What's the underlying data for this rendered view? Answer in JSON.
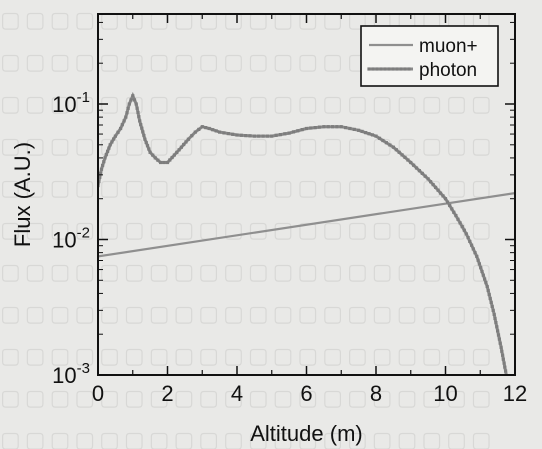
{
  "chart_data": {
    "type": "line",
    "xlabel": "Altitude (m)",
    "ylabel": "Flux (A.U.)",
    "xlim": [
      0,
      12
    ],
    "ylim": [
      0.001,
      0.2
    ],
    "yscale": "log",
    "x_ticks": [
      "0",
      "2",
      "4",
      "6",
      "8",
      "10",
      "12"
    ],
    "y_ticks": [
      {
        "value": 0.1,
        "base": "10",
        "exp": "-1"
      },
      {
        "value": 0.01,
        "base": "10",
        "exp": "-2"
      },
      {
        "value": 0.001,
        "base": "10",
        "exp": "-3"
      }
    ],
    "grid": false,
    "legend_position": "top-right",
    "series": [
      {
        "name": "muon+",
        "color": "#8f8f8f",
        "marker": "none",
        "x": [
          0,
          12
        ],
        "y": [
          0.0075,
          0.022
        ]
      },
      {
        "name": "photon",
        "color": "#8a8a8a",
        "marker": "square",
        "x": [
          0,
          0.1,
          0.2,
          0.35,
          0.5,
          0.65,
          0.8,
          0.9,
          1.0,
          1.1,
          1.2,
          1.35,
          1.5,
          1.65,
          1.8,
          2.0,
          2.2,
          2.4,
          2.6,
          2.8,
          3.0,
          3.2,
          3.5,
          4.0,
          4.5,
          5.0,
          5.5,
          6.0,
          6.5,
          7.0,
          7.5,
          8.0,
          8.5,
          9.0,
          9.5,
          10.0,
          10.3,
          10.6,
          10.9,
          11.2,
          11.4,
          11.6,
          11.75
        ],
        "y": [
          0.025,
          0.033,
          0.04,
          0.05,
          0.058,
          0.066,
          0.08,
          0.1,
          0.115,
          0.1,
          0.075,
          0.055,
          0.044,
          0.04,
          0.037,
          0.037,
          0.042,
          0.048,
          0.055,
          0.062,
          0.068,
          0.066,
          0.062,
          0.059,
          0.058,
          0.058,
          0.061,
          0.066,
          0.068,
          0.068,
          0.064,
          0.058,
          0.048,
          0.037,
          0.028,
          0.02,
          0.015,
          0.011,
          0.0075,
          0.0045,
          0.0028,
          0.0016,
          0.001
        ]
      }
    ]
  }
}
